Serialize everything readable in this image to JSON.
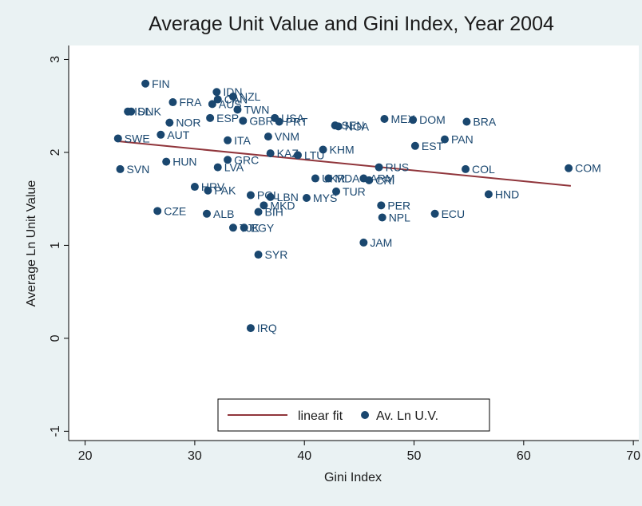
{
  "chart_data": {
    "type": "scatter",
    "title": "Average Unit Value and Gini Index, Year 2004",
    "x_label": "Gini Index",
    "y_label": "Average Ln Unit Value",
    "xlim": [
      18.5,
      70.5
    ],
    "ylim": [
      -1.1,
      3.15
    ],
    "xticks": [
      20,
      30,
      40,
      50,
      60,
      70
    ],
    "yticks": [
      -1,
      0,
      1,
      2,
      3
    ],
    "legend": "bottom",
    "series": [
      {
        "name": "linear fit",
        "type": "line",
        "color": "#90353b",
        "x": [
          23,
          64.3
        ],
        "values": [
          2.12,
          1.64
        ]
      },
      {
        "name": "Av. Ln U.V.",
        "type": "scatter",
        "color": "#1a476f",
        "labels": [
          "FIN",
          "IDN",
          "NZL",
          "AUS",
          "CAN",
          "TWN",
          "USA",
          "PRT",
          "GBR",
          "DNK",
          "ISL",
          "FRA",
          "NOR",
          "AUT",
          "SWE",
          "SVN",
          "HUN",
          "ITA",
          "ESP",
          "VNM",
          "KAZ",
          "LTU",
          "KHM",
          "GRC",
          "LVA",
          "HRV",
          "PAK",
          "CZE",
          "ALB",
          "POL",
          "LBN",
          "MKD",
          "BIH",
          "MYS",
          "TUR",
          "TJK",
          "EGY",
          "SYR",
          "IRQ",
          "UKR",
          "MDA",
          "ARM",
          "CRI",
          "MEX",
          "DOM",
          "BRA",
          "PAN",
          "EST",
          "RUS",
          "PER",
          "NPL",
          "ECU",
          "JAM",
          "COL",
          "HND",
          "COM",
          "SEN",
          "NGA"
        ],
        "x": [
          25.5,
          32.0,
          33.5,
          31.6,
          32.1,
          33.9,
          37.3,
          37.7,
          34.4,
          24.2,
          23.9,
          28.0,
          27.7,
          26.9,
          23.0,
          23.2,
          27.4,
          33.0,
          31.4,
          36.7,
          36.9,
          39.4,
          41.7,
          33.0,
          32.1,
          30.0,
          31.2,
          26.6,
          31.1,
          35.1,
          36.9,
          36.3,
          35.8,
          40.2,
          42.9,
          33.5,
          34.5,
          35.8,
          35.1,
          41.0,
          42.2,
          45.4,
          45.9,
          47.3,
          49.9,
          54.8,
          52.8,
          50.1,
          46.8,
          47.0,
          47.1,
          51.9,
          45.4,
          54.7,
          56.8,
          64.1,
          42.8,
          43.1
        ],
        "values": [
          2.74,
          2.65,
          2.6,
          2.52,
          2.57,
          2.46,
          2.37,
          2.33,
          2.34,
          2.44,
          2.44,
          2.54,
          2.32,
          2.19,
          2.15,
          1.82,
          1.9,
          2.13,
          2.37,
          2.17,
          1.99,
          1.97,
          2.03,
          1.92,
          1.84,
          1.63,
          1.59,
          1.37,
          1.34,
          1.54,
          1.52,
          1.43,
          1.36,
          1.51,
          1.58,
          1.19,
          1.19,
          0.9,
          0.11,
          1.72,
          1.72,
          1.72,
          1.7,
          2.36,
          2.35,
          2.33,
          2.14,
          2.07,
          1.84,
          1.43,
          1.3,
          1.34,
          1.03,
          1.82,
          1.55,
          1.83,
          2.29,
          2.28
        ]
      }
    ]
  }
}
